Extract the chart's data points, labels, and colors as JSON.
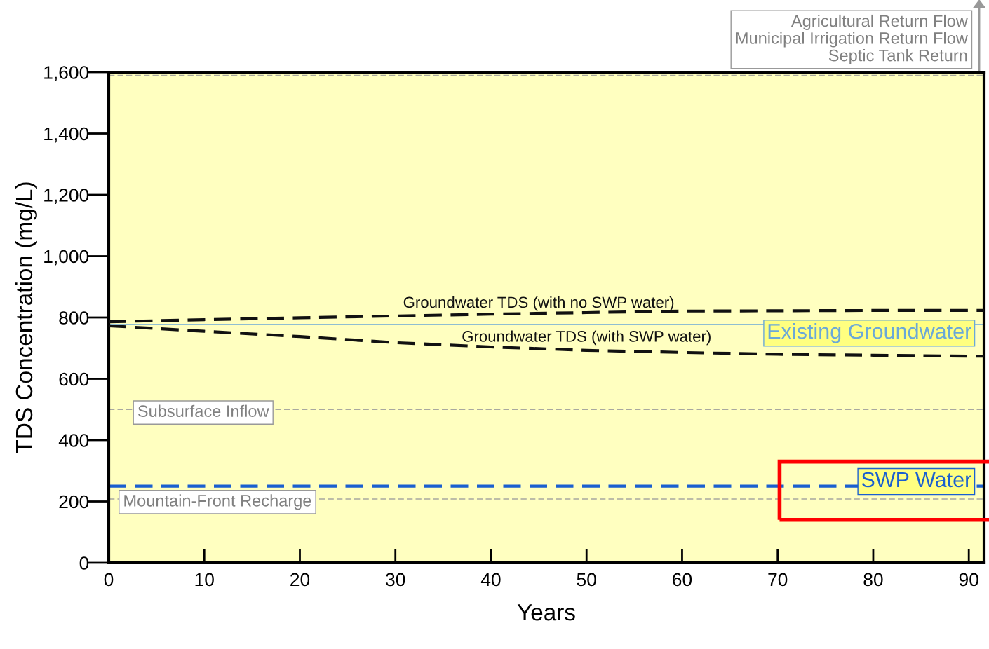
{
  "chart_data": {
    "type": "line",
    "xlabel": "Years",
    "ylabel": "TDS Concentration (mg/L)",
    "x": [
      0,
      10,
      20,
      30,
      40,
      50,
      60,
      70,
      80,
      90,
      91.6
    ],
    "series": [
      {
        "name": "Groundwater TDS (with no SWP water)",
        "color": "#111111",
        "values": [
          786,
          793,
          799,
          805,
          811,
          816,
          821,
          822,
          823,
          823,
          823
        ]
      },
      {
        "name": "Groundwater TDS (with SWP water)",
        "color": "#111111",
        "values": [
          773,
          755,
          738,
          718,
          704,
          693,
          686,
          680,
          677,
          674,
          674
        ]
      }
    ],
    "line_style": "dashed",
    "marker": "none",
    "ref_lines": [
      {
        "axis": "y",
        "value": 1590,
        "label": "Agricultural Return Flow\nMunicipal Irrigation Return Flow\nSeptic Tank Return",
        "color": "#a8a8a0",
        "line_style": "dashed"
      },
      {
        "axis": "y",
        "value": 777,
        "label": "Existing Groundwater",
        "color": "#6aa8d8",
        "line_style": "solid"
      },
      {
        "axis": "y",
        "value": 500,
        "label": "Subsurface Inflow",
        "color": "#a8a8a0",
        "line_style": "dashed"
      },
      {
        "axis": "y",
        "value": 250,
        "label": "SWP Water",
        "color": "#1a5fd0",
        "line_style": "dashed"
      },
      {
        "axis": "y",
        "value": 208,
        "label": "Mountain-Front Recharge",
        "color": "#a8a8a0",
        "line_style": "dashed"
      }
    ],
    "xlim": [
      0,
      91.6
    ],
    "xticks": [
      0,
      10,
      20,
      30,
      40,
      50,
      60,
      70,
      80,
      90
    ],
    "ylim": [
      0,
      1600
    ],
    "yticks": [
      0,
      200,
      400,
      600,
      800,
      {
        "value": 1000,
        "label": "1,000"
      },
      {
        "value": 1200,
        "label": "1,200"
      },
      {
        "value": 1400,
        "label": "1,400"
      },
      {
        "value": 1600,
        "label": "1,600"
      }
    ],
    "grid": false,
    "legend": false
  }
}
